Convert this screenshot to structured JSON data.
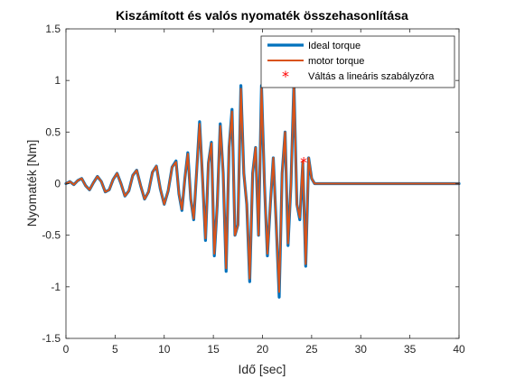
{
  "chart_data": {
    "type": "line",
    "title": "Kiszámított és valós nyomaték összehasonlítása",
    "xlabel": "Idő [sec]",
    "ylabel": "Nyomaték [Nm]",
    "xlim": [
      0,
      40
    ],
    "ylim": [
      -1.5,
      1.5
    ],
    "xticks": [
      0,
      5,
      10,
      15,
      20,
      25,
      30,
      35,
      40
    ],
    "yticks": [
      -1.5,
      -1,
      -0.5,
      0,
      0.5,
      1,
      1.5
    ],
    "xtick_labels": [
      "0",
      "5",
      "10",
      "15",
      "20",
      "25",
      "30",
      "35",
      "40"
    ],
    "ytick_labels": [
      "-1.5",
      "-1",
      "-0.5",
      "0",
      "0.5",
      "1",
      "1.5"
    ],
    "grid": false,
    "legend_position": "top-right",
    "series": [
      {
        "name": "Ideal torque",
        "color": "#0072BD",
        "style": "line",
        "x": [
          0,
          0.4,
          0.8,
          1.2,
          1.6,
          2.0,
          2.4,
          2.8,
          3.2,
          3.6,
          4.0,
          4.4,
          4.8,
          5.2,
          5.6,
          6.0,
          6.4,
          6.8,
          7.2,
          7.6,
          8.0,
          8.4,
          8.8,
          9.2,
          9.6,
          10.0,
          10.4,
          10.8,
          11.2,
          11.5,
          11.8,
          12.1,
          12.4,
          12.7,
          13.0,
          13.3,
          13.6,
          13.9,
          14.2,
          14.5,
          14.8,
          15.1,
          15.4,
          15.7,
          16.0,
          16.3,
          16.6,
          16.9,
          17.2,
          17.5,
          17.8,
          18.1,
          18.4,
          18.7,
          19.0,
          19.3,
          19.6,
          19.9,
          20.2,
          20.5,
          20.8,
          21.1,
          21.4,
          21.7,
          22.0,
          22.3,
          22.6,
          22.9,
          23.2,
          23.5,
          23.8,
          24.1,
          24.4,
          24.7,
          25.0,
          25.3,
          25.6,
          26.0,
          30,
          35,
          40
        ],
        "y": [
          0.0,
          0.02,
          -0.01,
          0.03,
          0.05,
          -0.02,
          -0.06,
          0.01,
          0.07,
          0.02,
          -0.08,
          -0.06,
          0.04,
          0.1,
          0.0,
          -0.12,
          -0.07,
          0.08,
          0.13,
          -0.02,
          -0.15,
          -0.08,
          0.11,
          0.17,
          -0.05,
          -0.2,
          -0.07,
          0.16,
          0.22,
          -0.1,
          -0.26,
          0.05,
          0.3,
          -0.15,
          -0.35,
          0.12,
          0.6,
          0.05,
          -0.55,
          0.2,
          0.4,
          -0.7,
          -0.2,
          0.58,
          0.1,
          -0.85,
          0.35,
          0.72,
          -0.5,
          -0.4,
          0.95,
          0.1,
          -0.2,
          -0.95,
          0.1,
          0.35,
          -0.5,
          0.95,
          0.0,
          -0.7,
          -0.2,
          0.25,
          -0.4,
          -1.1,
          0.1,
          0.5,
          -0.6,
          0.0,
          0.98,
          -0.2,
          -0.35,
          0.2,
          -0.8,
          0.25,
          0.05,
          0.0,
          0.0,
          0.0,
          0.0,
          0.0,
          0.0
        ]
      },
      {
        "name": "motor torque",
        "color": "#D95319",
        "style": "line",
        "x": [
          0,
          0.4,
          0.8,
          1.2,
          1.6,
          2.0,
          2.4,
          2.8,
          3.2,
          3.6,
          4.0,
          4.4,
          4.8,
          5.2,
          5.6,
          6.0,
          6.4,
          6.8,
          7.2,
          7.6,
          8.0,
          8.4,
          8.8,
          9.2,
          9.6,
          10.0,
          10.4,
          10.8,
          11.2,
          11.5,
          11.8,
          12.1,
          12.4,
          12.7,
          13.0,
          13.3,
          13.6,
          13.9,
          14.2,
          14.5,
          14.8,
          15.1,
          15.4,
          15.7,
          16.0,
          16.3,
          16.6,
          16.9,
          17.2,
          17.5,
          17.8,
          18.1,
          18.4,
          18.7,
          19.0,
          19.3,
          19.6,
          19.9,
          20.2,
          20.5,
          20.8,
          21.1,
          21.4,
          21.7,
          22.0,
          22.3,
          22.6,
          22.9,
          23.2,
          23.5,
          23.8,
          24.1,
          24.4,
          24.7,
          25.0,
          25.3,
          25.6,
          26.0,
          30,
          35,
          40
        ],
        "y": [
          0.0,
          0.02,
          -0.01,
          0.03,
          0.05,
          -0.02,
          -0.06,
          0.01,
          0.07,
          0.02,
          -0.08,
          -0.06,
          0.04,
          0.1,
          0.0,
          -0.12,
          -0.07,
          0.08,
          0.13,
          -0.02,
          -0.15,
          -0.08,
          0.11,
          0.17,
          -0.05,
          -0.2,
          -0.07,
          0.16,
          0.21,
          -0.1,
          -0.25,
          0.05,
          0.29,
          -0.15,
          -0.34,
          0.12,
          0.58,
          0.05,
          -0.53,
          0.2,
          0.39,
          -0.68,
          -0.2,
          0.56,
          0.1,
          -0.82,
          0.35,
          0.7,
          -0.5,
          -0.4,
          0.92,
          0.1,
          -0.2,
          -0.92,
          0.1,
          0.35,
          -0.5,
          0.93,
          0.0,
          -0.68,
          -0.2,
          0.25,
          -0.4,
          -1.05,
          0.1,
          0.5,
          -0.58,
          0.0,
          0.97,
          -0.2,
          -0.33,
          0.22,
          -0.78,
          0.25,
          0.05,
          0.0,
          0.0,
          0.0,
          0.0,
          0.0,
          0.0
        ]
      },
      {
        "name": "Váltás a lineáris szabályzóra",
        "color": "#FF0000",
        "style": "marker",
        "marker": "*",
        "x": [
          24.2
        ],
        "y": [
          0.21
        ]
      }
    ]
  }
}
